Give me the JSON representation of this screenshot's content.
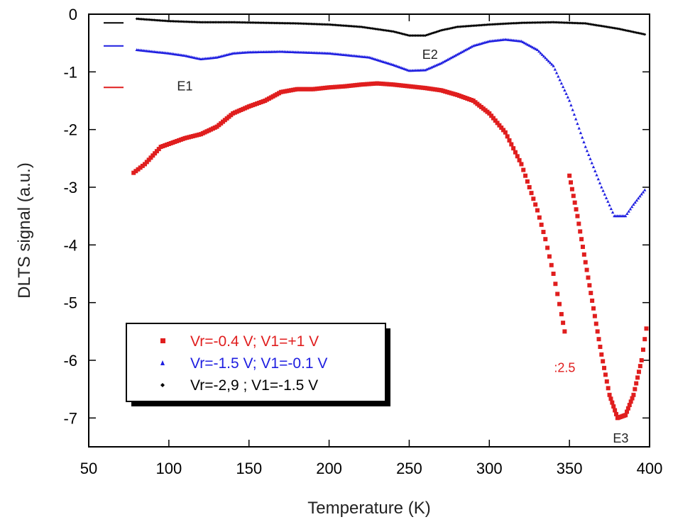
{
  "chart_data": {
    "type": "scatter",
    "title": "",
    "xlabel": "Temperature (K)",
    "ylabel": "DLTS signal (a.u.)",
    "xlim": [
      50,
      400
    ],
    "ylim": [
      -7.5,
      0
    ],
    "x_ticks": [
      50,
      100,
      150,
      200,
      250,
      300,
      350,
      400
    ],
    "y_ticks": [
      0,
      -1,
      -2,
      -3,
      -4,
      -5,
      -6,
      -7
    ],
    "grid": false,
    "legend_position": "bottom-left",
    "series": [
      {
        "name": "Vr=-0.4 V; V1=+1 V",
        "color": "#e01e1e",
        "marker": "square",
        "points": [
          [
            78,
            -2.75
          ],
          [
            85,
            -2.6
          ],
          [
            90,
            -2.45
          ],
          [
            95,
            -2.3
          ],
          [
            100,
            -2.25
          ],
          [
            110,
            -2.15
          ],
          [
            120,
            -2.08
          ],
          [
            130,
            -1.95
          ],
          [
            140,
            -1.72
          ],
          [
            150,
            -1.6
          ],
          [
            160,
            -1.5
          ],
          [
            170,
            -1.35
          ],
          [
            180,
            -1.3
          ],
          [
            190,
            -1.3
          ],
          [
            200,
            -1.27
          ],
          [
            210,
            -1.25
          ],
          [
            220,
            -1.22
          ],
          [
            230,
            -1.2
          ],
          [
            240,
            -1.22
          ],
          [
            250,
            -1.25
          ],
          [
            260,
            -1.28
          ],
          [
            270,
            -1.32
          ],
          [
            280,
            -1.4
          ],
          [
            290,
            -1.5
          ],
          [
            300,
            -1.72
          ],
          [
            310,
            -2.05
          ],
          [
            320,
            -2.6
          ],
          [
            330,
            -3.4
          ],
          [
            335,
            -3.9
          ],
          [
            340,
            -4.5
          ],
          [
            345,
            -5.2
          ],
          [
            347,
            -5.5
          ]
        ],
        "scaled_segment_label": ":2.5",
        "scaled_points": [
          [
            350,
            -2.8
          ],
          [
            355,
            -3.5
          ],
          [
            360,
            -4.3
          ],
          [
            365,
            -5.1
          ],
          [
            370,
            -5.9
          ],
          [
            375,
            -6.6
          ],
          [
            380,
            -7.0
          ],
          [
            385,
            -6.95
          ],
          [
            390,
            -6.6
          ],
          [
            395,
            -6.0
          ],
          [
            398,
            -5.45
          ]
        ]
      },
      {
        "name": "Vr=-1.5 V; V1=-0.1 V",
        "color": "#1e1ee0",
        "marker": "triangle",
        "points": [
          [
            80,
            -0.62
          ],
          [
            100,
            -0.68
          ],
          [
            110,
            -0.72
          ],
          [
            120,
            -0.78
          ],
          [
            130,
            -0.75
          ],
          [
            140,
            -0.68
          ],
          [
            150,
            -0.66
          ],
          [
            170,
            -0.65
          ],
          [
            200,
            -0.68
          ],
          [
            225,
            -0.75
          ],
          [
            240,
            -0.88
          ],
          [
            250,
            -0.98
          ],
          [
            260,
            -0.97
          ],
          [
            270,
            -0.85
          ],
          [
            280,
            -0.7
          ],
          [
            290,
            -0.55
          ],
          [
            300,
            -0.47
          ],
          [
            310,
            -0.44
          ],
          [
            320,
            -0.47
          ],
          [
            330,
            -0.62
          ],
          [
            340,
            -0.9
          ],
          [
            350,
            -1.5
          ],
          [
            360,
            -2.3
          ],
          [
            370,
            -3.0
          ],
          [
            378,
            -3.5
          ],
          [
            385,
            -3.5
          ],
          [
            390,
            -3.3
          ],
          [
            397,
            -3.05
          ]
        ]
      },
      {
        "name": "Vr=-2,9 ; V1=-1.5 V",
        "color": "#000000",
        "marker": "diamond",
        "points": [
          [
            80,
            -0.08
          ],
          [
            100,
            -0.12
          ],
          [
            120,
            -0.14
          ],
          [
            140,
            -0.14
          ],
          [
            160,
            -0.15
          ],
          [
            180,
            -0.16
          ],
          [
            200,
            -0.18
          ],
          [
            220,
            -0.22
          ],
          [
            240,
            -0.3
          ],
          [
            250,
            -0.37
          ],
          [
            260,
            -0.37
          ],
          [
            270,
            -0.28
          ],
          [
            280,
            -0.22
          ],
          [
            300,
            -0.18
          ],
          [
            320,
            -0.15
          ],
          [
            340,
            -0.14
          ],
          [
            360,
            -0.16
          ],
          [
            380,
            -0.25
          ],
          [
            397,
            -0.35
          ]
        ]
      }
    ],
    "annotations": [
      {
        "text": "E1",
        "x": 110,
        "y": -1.25
      },
      {
        "text": "E2",
        "x": 263,
        "y": -0.7
      },
      {
        "text": "E3",
        "x": 382,
        "y": -7.35
      }
    ]
  }
}
